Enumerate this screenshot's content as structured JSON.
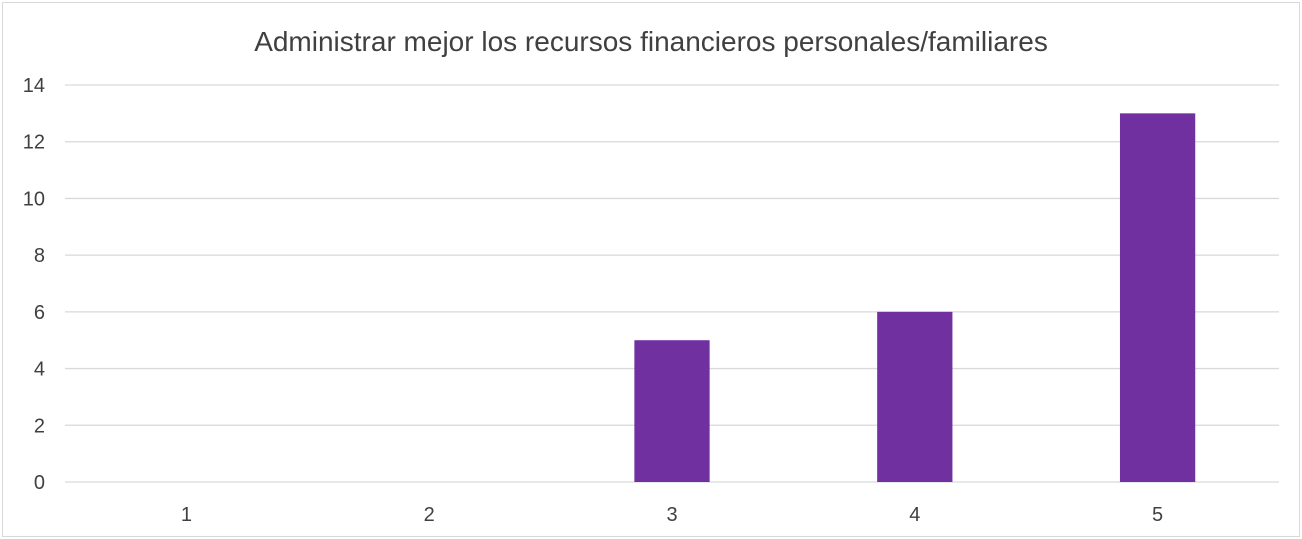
{
  "chart_data": {
    "type": "bar",
    "title": "Administrar mejor los recursos financieros personales/familiares",
    "xlabel": "",
    "ylabel": "",
    "categories": [
      "1",
      "2",
      "3",
      "4",
      "5"
    ],
    "values": [
      0,
      0,
      5,
      6,
      13
    ],
    "ylim": [
      0,
      14
    ],
    "yticks": [
      "0",
      "2",
      "4",
      "6",
      "8",
      "10",
      "12",
      "14"
    ],
    "grid": true,
    "legend": "none",
    "bar_color": "#7030a0",
    "grid_color": "#d9d9d9",
    "text_color": "#404040"
  }
}
